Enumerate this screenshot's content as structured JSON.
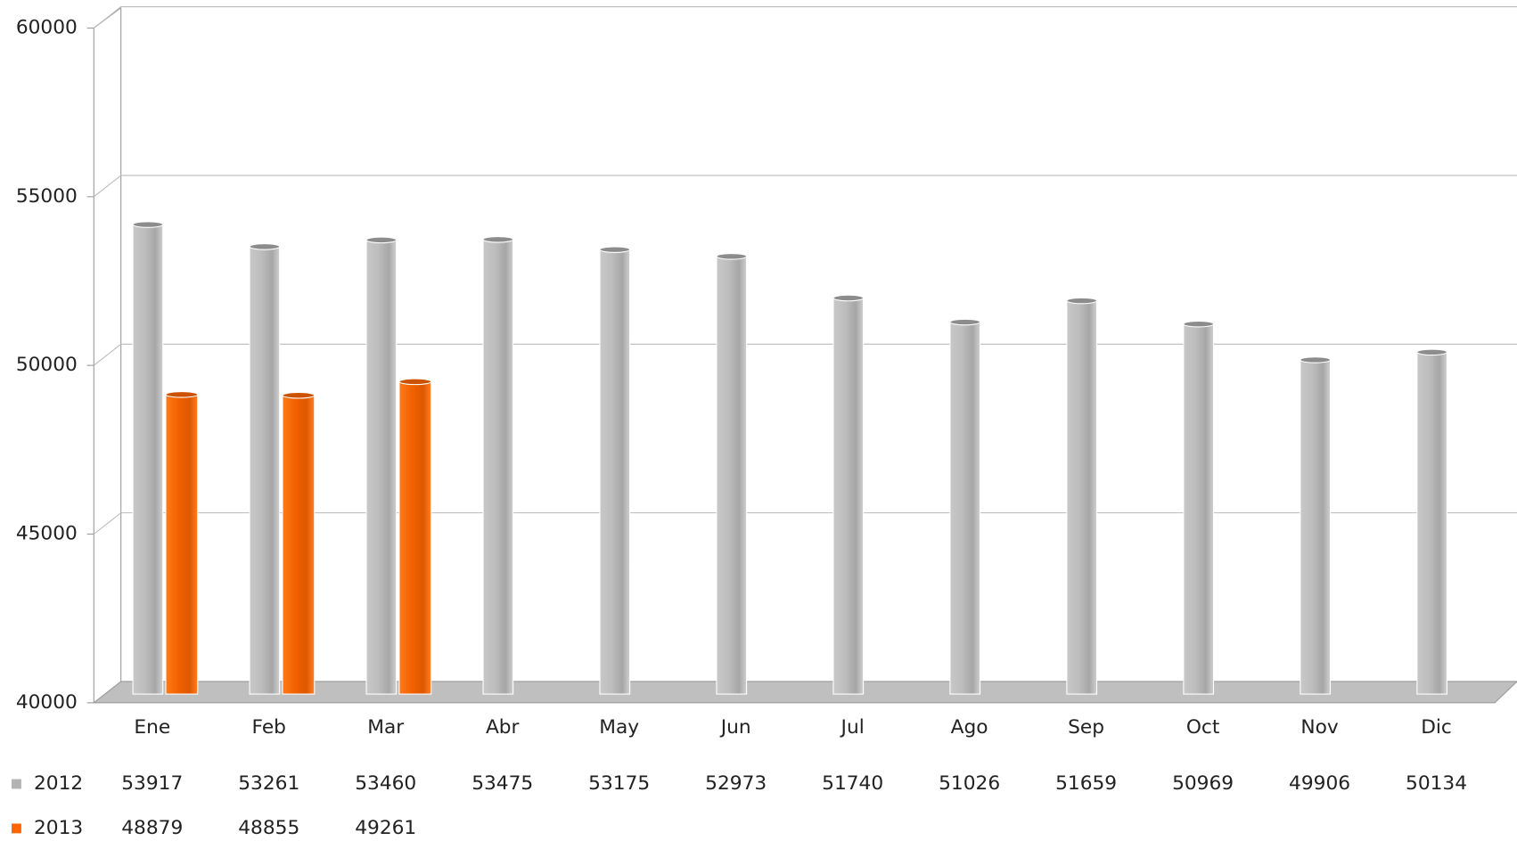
{
  "chart_data": {
    "type": "bar",
    "categories": [
      "Ene",
      "Feb",
      "Mar",
      "Abr",
      "May",
      "Jun",
      "Jul",
      "Ago",
      "Sep",
      "Oct",
      "Nov",
      "Dic"
    ],
    "series": [
      {
        "name": "2012",
        "color": "#b3b3b3",
        "values": [
          53917,
          53261,
          53460,
          53475,
          53175,
          52973,
          51740,
          51026,
          51659,
          50969,
          49906,
          50134
        ]
      },
      {
        "name": "2013",
        "color": "#ff6600",
        "values": [
          48879,
          48855,
          49261,
          null,
          null,
          null,
          null,
          null,
          null,
          null,
          null,
          null
        ]
      }
    ],
    "ylim": [
      40000,
      60000
    ],
    "yticks": [
      40000,
      45000,
      50000,
      55000,
      60000
    ],
    "grid": true
  }
}
